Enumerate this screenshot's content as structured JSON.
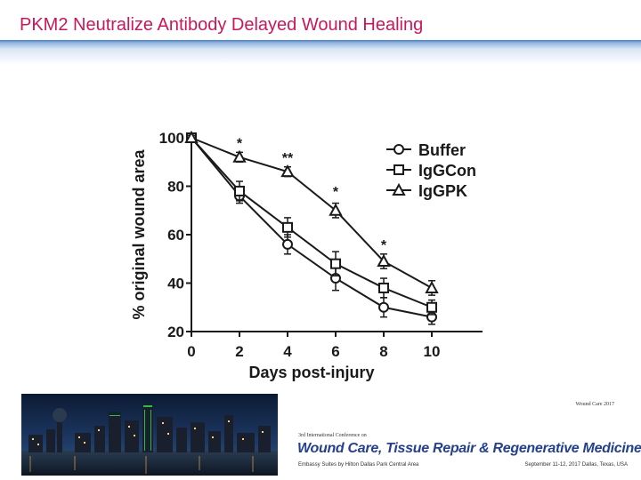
{
  "slide": {
    "title": "PKM2 Neutralize Antibody Delayed Wound Healing"
  },
  "chart_data": {
    "type": "line",
    "xlabel": "Days post-injury",
    "ylabel": "% original wound area",
    "x": [
      0,
      2,
      4,
      6,
      8,
      10
    ],
    "xlim": [
      0,
      10
    ],
    "ylim": [
      20,
      100
    ],
    "xticks": [
      "0",
      "2",
      "4",
      "6",
      "8",
      "10"
    ],
    "yticks": [
      "20",
      "40",
      "60",
      "80",
      "100"
    ],
    "legend_position": "top-right",
    "series": [
      {
        "name": "Buffer",
        "marker": "circle",
        "values": [
          100,
          76,
          56,
          42,
          30,
          26
        ],
        "errors": [
          1,
          3,
          4,
          5,
          4,
          3
        ]
      },
      {
        "name": "IgGCon",
        "marker": "square",
        "values": [
          100,
          78,
          63,
          48,
          38,
          30
        ],
        "errors": [
          1,
          4,
          4,
          5,
          4,
          3
        ]
      },
      {
        "name": "IgGPK",
        "marker": "triangle",
        "values": [
          100,
          92,
          86,
          70,
          49,
          38
        ],
        "errors": [
          1,
          2,
          2,
          3,
          3,
          3
        ]
      }
    ],
    "annotations": [
      {
        "x": 2,
        "y": 98,
        "text": "*"
      },
      {
        "x": 4,
        "y": 92,
        "text": "**"
      },
      {
        "x": 6,
        "y": 78,
        "text": "*"
      },
      {
        "x": 8,
        "y": 56,
        "text": "*"
      }
    ],
    "colors": {
      "line": "#1a1a1a",
      "marker_fill": "#ffffff"
    }
  },
  "footer": {
    "conference_tag": "Wound Care 2017",
    "conference_edition": "3rd International Conference on",
    "conference_name": "Wound Care, Tissue Repair & Regenerative Medicine",
    "venue": "Embassy Suites by Hilton Dallas Park Central Area",
    "date": "September 11-12, 2017  Dallas, Texas, USA"
  }
}
